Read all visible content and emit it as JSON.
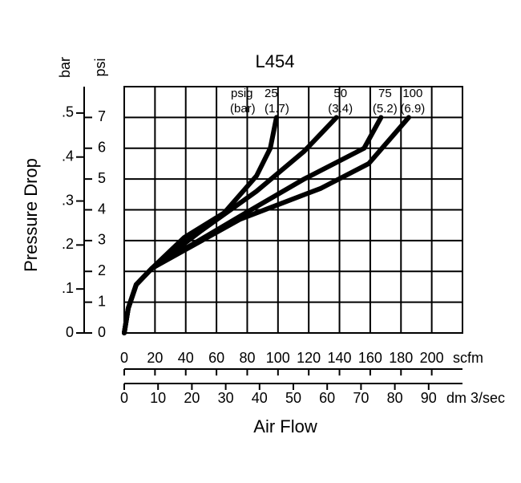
{
  "chart_data": {
    "type": "line",
    "title": "L454",
    "y_title": "Pressure Drop",
    "y_unit": "psi",
    "y2_unit": "bar",
    "x_title": "Air Flow",
    "x_unit": "scfm",
    "x2_unit": "dm 3/sec",
    "xlim": [
      0,
      220
    ],
    "xticks": [
      0,
      20,
      40,
      60,
      80,
      100,
      120,
      140,
      160,
      180,
      200
    ],
    "x2lim": [
      0,
      100
    ],
    "x2ticks": [
      0,
      10,
      20,
      30,
      40,
      50,
      60,
      70,
      80,
      90
    ],
    "ylim": [
      0,
      8
    ],
    "yticks": [
      0,
      1,
      2,
      3,
      4,
      5,
      6,
      7
    ],
    "y2lim": [
      0,
      0.56
    ],
    "y2ticks": [
      0,
      {
        "value": 0.1,
        "label": ".1"
      },
      {
        "value": 0.2,
        "label": ".2"
      },
      {
        "value": 0.3,
        "label": ".3"
      },
      {
        "value": 0.4,
        "label": ".4"
      },
      {
        "value": 0.5,
        "label": ".5"
      }
    ],
    "grid": true,
    "series_label_prefix": "psig",
    "pressure_label_prefix": "(bar)",
    "series": [
      {
        "name": "25",
        "pressure_label": "(1.7)",
        "color": "#000000",
        "x": [
          0,
          2.6,
          7.8,
          18,
          39,
          65,
          86,
          95,
          99
        ],
        "values": [
          0,
          0.8,
          1.57,
          2.1,
          3.1,
          3.9,
          5.1,
          6.0,
          7.0
        ]
      },
      {
        "name": "50",
        "pressure_label": "(3.4)",
        "color": "#000000",
        "x": [
          0,
          2.6,
          7.8,
          18,
          49.5,
          86,
          117,
          138
        ],
        "values": [
          0,
          0.8,
          1.57,
          2.1,
          3.3,
          4.6,
          5.9,
          7.0
        ]
      },
      {
        "name": "75",
        "pressure_label": "(5.2)",
        "color": "#000000",
        "x": [
          0,
          2.6,
          7.8,
          18,
          75.6,
          117,
          156,
          167
        ],
        "values": [
          0,
          0.8,
          1.57,
          2.1,
          3.8,
          5.0,
          6.0,
          7.0
        ]
      },
      {
        "name": "100",
        "pressure_label": "(6.9)",
        "color": "#000000",
        "x": [
          0,
          2.6,
          7.8,
          18,
          75.6,
          128,
          159,
          185
        ],
        "values": [
          0,
          0.8,
          1.57,
          2.1,
          3.7,
          4.7,
          5.5,
          7.0
        ]
      }
    ]
  }
}
